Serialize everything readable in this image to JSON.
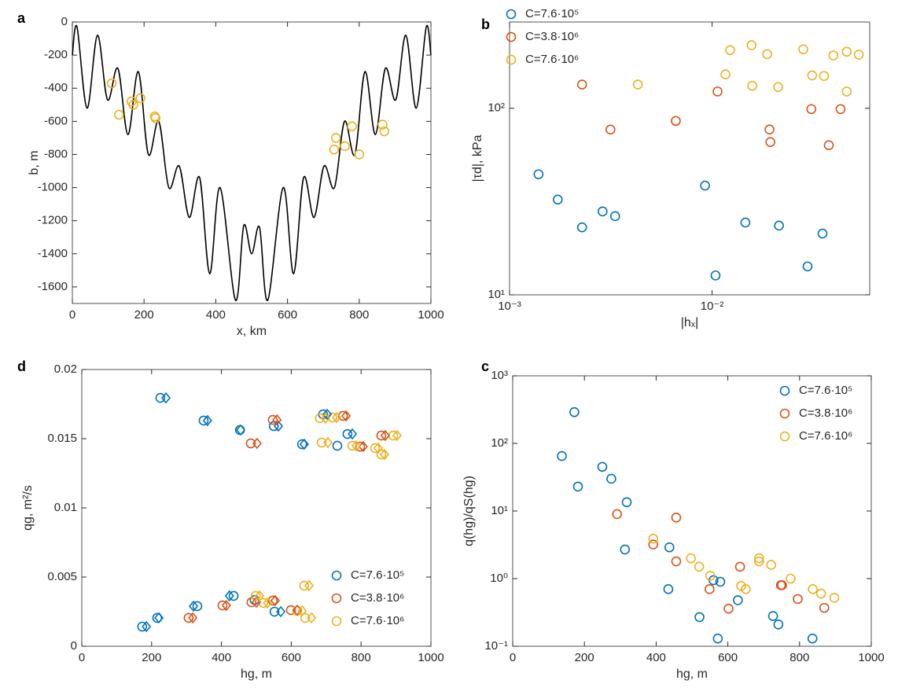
{
  "chart_data": [
    {
      "type": "line",
      "panel_label": "a",
      "xlabel": "x, km",
      "ylabel": "b, m",
      "xlim": [
        0,
        1000
      ],
      "ylim": [
        -1700,
        0
      ],
      "xticks": [
        0,
        200,
        400,
        600,
        800,
        1000
      ],
      "yticks": [
        0,
        -200,
        -400,
        -600,
        -800,
        -1000,
        -1200,
        -1400,
        -1600
      ],
      "series": [
        {
          "color": "#000000",
          "marker": "line",
          "x": [
            0,
            13,
            41,
            70,
            98,
            127,
            155,
            184,
            212,
            241,
            269,
            298,
            326,
            355,
            383,
            412,
            455,
            478,
            500,
            522,
            545,
            588,
            617,
            645,
            674,
            702,
            731,
            759,
            788,
            816,
            845,
            873,
            902,
            930,
            959,
            987,
            1000
          ],
          "values": [
            -200,
            -30,
            -520,
            -80,
            -470,
            -280,
            -680,
            -300,
            -800,
            -600,
            -1000,
            -870,
            -1180,
            -940,
            -1520,
            -1000,
            -1680,
            -1230,
            -1400,
            -1240,
            -1680,
            -1000,
            -1520,
            -940,
            -1180,
            -870,
            -1000,
            -600,
            -800,
            -300,
            -680,
            -280,
            -470,
            -80,
            -520,
            -30,
            -200
          ]
        },
        {
          "color": "#edb120",
          "marker": "circle",
          "x": [
            110,
            130,
            165,
            170,
            190,
            230,
            232,
            730,
            735,
            760,
            780,
            800,
            865,
            870
          ],
          "values": [
            -370,
            -560,
            -480,
            -500,
            -460,
            -570,
            -580,
            -770,
            -700,
            -750,
            -630,
            -800,
            -620,
            -660
          ]
        }
      ]
    },
    {
      "type": "scatter",
      "panel_label": "b",
      "xlabel": "|hₓ|",
      "ylabel": "|τd|, kPa",
      "log_x": true,
      "log_y": true,
      "legend": "upper left",
      "xlim": [
        0.001,
        0.06
      ],
      "ylim": [
        10,
        290
      ],
      "xticks": [
        {
          "value": 0.001,
          "label": "10⁻³"
        },
        {
          "value": 0.01,
          "label": "10⁻²"
        }
      ],
      "yticks": [
        {
          "value": 10,
          "label": "10¹"
        },
        {
          "value": 100,
          "label": "10²"
        }
      ],
      "series": [
        {
          "name": "C=7.6·10⁵",
          "color": "#0072bd",
          "marker": "circle",
          "x": [
            0.00139,
            0.00173,
            0.00228,
            0.00288,
            0.00332,
            0.00923,
            0.0104,
            0.0146,
            0.0214,
            0.0296,
            0.0351
          ],
          "values": [
            44.3,
            32.4,
            23,
            28,
            26.4,
            38.5,
            12.7,
            24.4,
            23.5,
            14.2,
            21.3
          ]
        },
        {
          "name": "C=3.8·10⁶",
          "color": "#d95319",
          "marker": "circle",
          "x": [
            0.00228,
            0.00315,
            0.00662,
            0.01064,
            0.0192,
            0.0194,
            0.0309,
            0.0377,
            0.0431
          ],
          "values": [
            134,
            76.9,
            85.5,
            123,
            77,
            65.9,
            99,
            63.4,
            99
          ]
        },
        {
          "name": "C=7.6·10⁶",
          "color": "#edb120",
          "marker": "circle",
          "x": [
            0.0043,
            0.01164,
            0.01227,
            0.01566,
            0.01578,
            0.0187,
            0.0212,
            0.0282,
            0.0312,
            0.0357,
            0.0397,
            0.0462,
            0.0462,
            0.053
          ],
          "values": [
            134,
            152,
            205,
            218,
            132,
            195,
            130,
            207,
            150,
            149,
            192,
            201,
            123,
            194
          ]
        }
      ]
    },
    {
      "type": "scatter",
      "panel_label": "d",
      "xlabel": "hg, m",
      "ylabel": "qg, m²/s",
      "legend": "lower right",
      "xlim": [
        0,
        1000
      ],
      "ylim": [
        0,
        0.02
      ],
      "xticks": [
        0,
        200,
        400,
        600,
        800,
        1000
      ],
      "yticks": [
        0,
        0.005,
        0.01,
        0.015,
        0.02
      ],
      "series": [
        {
          "name": "C=7.6·10⁵",
          "color": "#0072bd",
          "marker": "circle",
          "x": [
            225,
            349,
            453,
            550,
            631,
            691,
            732,
            761,
            173,
            216,
            331,
            435,
            495,
            552
          ],
          "values": [
            0.01795,
            0.01631,
            0.01563,
            0.01591,
            0.0146,
            0.01676,
            0.01449,
            0.01534,
            0.00142,
            0.00205,
            0.0029,
            0.00364,
            0.00335,
            0.0025
          ]
        },
        {
          "name": "C=3.8·10⁶",
          "color": "#d95319",
          "marker": "circle",
          "x": [
            484,
            547,
            748,
            797,
            858,
            306,
            403,
            486,
            547,
            599
          ],
          "values": [
            0.01466,
            0.01636,
            0.01665,
            0.01443,
            0.01523,
            0.00205,
            0.00295,
            0.00318,
            0.0033,
            0.00261
          ]
        },
        {
          "name": "C=7.6·10⁶",
          "color": "#edb120",
          "marker": "circle",
          "x": [
            682,
            718,
            687,
            775,
            840,
            858,
            892,
            640,
            498,
            520,
            617,
            637
          ],
          "values": [
            0.01648,
            0.01653,
            0.01472,
            0.01449,
            0.01432,
            0.01386,
            0.01523,
            0.00205,
            0.00364,
            0.00313,
            0.00256,
            0.00438
          ]
        },
        {
          "color": "#0072bd",
          "marker": "diamond",
          "x": [
            241,
            360,
            455,
            563,
            637,
            703,
            775,
            185,
            221,
            320,
            423,
            570
          ],
          "values": [
            0.01795,
            0.01631,
            0.01563,
            0.01591,
            0.0146,
            0.01676,
            0.01534,
            0.00142,
            0.00205,
            0.0029,
            0.00364,
            0.0025
          ]
        },
        {
          "color": "#d95319",
          "marker": "diamond",
          "x": [
            502,
            559,
            757,
            806,
            869,
            318,
            414,
            500,
            554,
            617
          ],
          "values": [
            0.01466,
            0.01636,
            0.01665,
            0.01443,
            0.01523,
            0.00205,
            0.00295,
            0.00318,
            0.0033,
            0.00261
          ]
        },
        {
          "color": "#edb120",
          "marker": "diamond",
          "x": [
            698,
            730,
            705,
            786,
            849,
            867,
            903,
            658,
            509,
            532,
            631,
            651
          ],
          "values": [
            0.01648,
            0.01653,
            0.01472,
            0.01449,
            0.01432,
            0.01386,
            0.01523,
            0.00205,
            0.00364,
            0.00313,
            0.00256,
            0.00438
          ]
        }
      ]
    },
    {
      "type": "scatter",
      "panel_label": "c",
      "xlabel": "hg, m",
      "ylabel": "q(hg)/qS(hg)",
      "log_y": true,
      "legend": "upper right",
      "xlim": [
        0,
        1000
      ],
      "ylim": [
        0.1,
        1000
      ],
      "xticks": [
        0,
        200,
        400,
        600,
        800,
        1000
      ],
      "yticks": [
        {
          "value": 0.1,
          "label": "10⁻¹"
        },
        {
          "value": 1,
          "label": "10⁰"
        },
        {
          "value": 10,
          "label": "10¹"
        },
        {
          "value": 100,
          "label": "10²"
        },
        {
          "value": 1000,
          "label": "10³"
        }
      ],
      "series": [
        {
          "name": "C=7.6·10⁵",
          "color": "#0072bd",
          "marker": "circle",
          "x": [
            137,
            172,
            182,
            250,
            275,
            313,
            318,
            434,
            437,
            521,
            560,
            572,
            579,
            628,
            726,
            741,
            836
          ],
          "values": [
            65,
            290,
            23,
            45,
            30,
            2.7,
            13.5,
            0.7,
            2.9,
            0.27,
            0.95,
            0.13,
            0.9,
            0.48,
            0.28,
            0.21,
            0.13
          ]
        },
        {
          "name": "C=3.8·10⁶",
          "color": "#d95319",
          "marker": "circle",
          "x": [
            291,
            392,
            456,
            456,
            549,
            602,
            634,
            748,
            751,
            795,
            869
          ],
          "values": [
            9.0,
            3.2,
            8.0,
            1.8,
            0.7,
            0.36,
            1.5,
            0.8,
            0.8,
            0.5,
            0.37
          ]
        },
        {
          "name": "C=7.6·10⁶",
          "color": "#edb120",
          "marker": "circle",
          "x": [
            392,
            497,
            520,
            551,
            637,
            650,
            687,
            687,
            721,
            775,
            837,
            860,
            897
          ],
          "values": [
            3.9,
            2.0,
            1.5,
            1.1,
            0.78,
            0.7,
            2.0,
            1.8,
            1.6,
            1.0,
            0.7,
            0.6,
            0.52
          ]
        }
      ]
    }
  ]
}
